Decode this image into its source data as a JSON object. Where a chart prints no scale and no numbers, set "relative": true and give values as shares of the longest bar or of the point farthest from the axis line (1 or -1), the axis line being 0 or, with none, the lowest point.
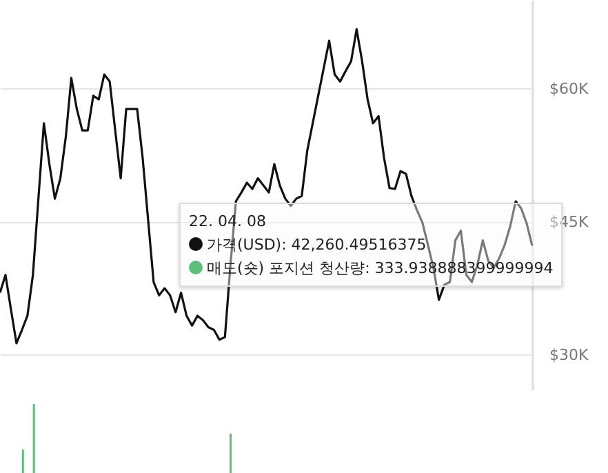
{
  "chart_data": [
    {
      "type": "line",
      "categories": [
        null,
        null,
        null,
        null,
        null,
        null,
        null,
        null,
        null,
        null,
        null,
        null,
        null,
        null,
        null,
        null,
        null,
        null,
        null,
        null,
        null,
        null,
        null,
        null,
        null,
        null,
        null,
        null,
        null,
        null,
        null,
        null,
        null,
        null,
        null,
        null,
        null,
        null,
        null,
        null,
        null,
        null,
        null,
        null,
        null,
        null,
        null,
        null,
        null,
        null,
        null,
        null,
        null,
        null,
        null,
        null,
        null,
        null,
        null,
        null,
        null,
        null,
        null,
        null,
        null,
        null,
        null,
        null,
        null,
        null,
        null,
        null,
        null,
        null,
        null,
        null,
        null,
        null,
        null,
        null,
        null,
        null,
        null,
        null,
        null,
        null,
        null,
        null,
        null,
        null,
        null,
        null,
        null,
        null,
        null,
        null,
        null,
        null
      ],
      "series": [
        {
          "color": "#111111",
          "values": [
            37000,
            39000,
            35100,
            31300,
            32800,
            34400,
            39000,
            47600,
            56100,
            51500,
            47600,
            49900,
            54600,
            61200,
            57700,
            55300,
            55300,
            59200,
            58800,
            61600,
            60800,
            55300,
            49900,
            57700,
            57700,
            57700,
            52200,
            45200,
            38200,
            36700,
            37500,
            36700,
            34800,
            37000,
            34400,
            33300,
            34400,
            33900,
            33100,
            32800,
            31700,
            32000,
            40100,
            47300,
            48300,
            49400,
            48700,
            49900,
            49100,
            48300,
            51500,
            49100,
            47600,
            46800,
            47600,
            47900,
            53000,
            56100,
            59200,
            62300,
            65400,
            61600,
            60800,
            62000,
            63100,
            66700,
            63100,
            58800,
            56100,
            56900,
            52200,
            48800,
            48700,
            50700,
            50400,
            47900,
            46300,
            44900,
            42400,
            39800,
            36200,
            37900,
            38200,
            42900,
            44000,
            39000,
            38200,
            40100,
            42900,
            40600,
            39800,
            40900,
            42400,
            44500,
            47300,
            46500,
            44800,
            42300
          ]
        }
      ],
      "ylim": [
        26000,
        70000
      ],
      "yticks": [
        {
          "value": 30000,
          "label": "$30K"
        },
        {
          "value": 45000,
          "label": "$45K"
        },
        {
          "value": 60000,
          "label": "$60K"
        }
      ],
      "grid": "y",
      "tick_labels": "y",
      "annotations": [
        "22. 04. 08",
        "가격(USD): 42,260.49516375",
        "매도(숏) 포지션 청산량: 333.938888399999994"
      ]
    },
    {
      "type": "bar",
      "relative": true,
      "tick_labels": false,
      "categories": [
        null,
        null,
        null,
        null,
        null,
        null,
        null,
        null,
        null,
        null,
        null,
        null,
        null,
        null,
        null,
        null,
        null,
        null,
        null,
        null,
        null,
        null,
        null,
        null,
        null,
        null,
        null,
        null,
        null,
        null,
        null,
        null,
        null,
        null,
        null,
        null,
        null,
        null,
        null,
        null,
        null,
        null,
        null,
        null,
        null,
        null,
        null,
        null,
        null,
        null,
        null,
        null,
        null,
        null,
        null,
        null,
        null,
        null,
        null,
        null,
        null,
        null,
        null,
        null,
        null,
        null,
        null,
        null,
        null,
        null,
        null,
        null,
        null,
        null,
        null,
        null,
        null,
        null,
        null,
        null,
        null,
        null,
        null,
        null,
        null,
        null,
        null,
        null,
        null,
        null,
        null,
        null,
        null,
        null,
        null,
        null,
        null,
        null
      ],
      "series": [
        {
          "color": "#5cbf7a",
          "values": [
            0,
            0,
            0,
            0,
            0.34,
            0,
            1,
            0,
            0,
            0,
            0,
            0,
            0,
            0,
            0,
            0,
            0,
            0,
            0,
            0,
            0,
            0,
            0,
            0,
            0,
            0,
            0,
            0,
            0,
            0,
            0,
            0,
            0,
            0,
            0,
            0,
            0,
            0,
            0,
            0,
            0,
            0,
            0.57,
            0,
            0,
            0,
            0,
            0,
            0,
            0,
            0,
            0,
            0,
            0,
            0,
            0,
            0,
            0,
            0,
            0,
            0,
            0,
            0,
            0,
            0,
            0,
            0,
            0,
            0,
            0,
            0,
            0,
            0,
            0,
            0,
            0,
            0,
            0,
            0,
            0,
            0,
            0,
            0,
            0,
            0,
            0,
            0,
            0,
            0,
            0,
            0,
            0,
            0,
            0,
            0,
            0,
            0,
            0
          ]
        }
      ]
    }
  ]
}
